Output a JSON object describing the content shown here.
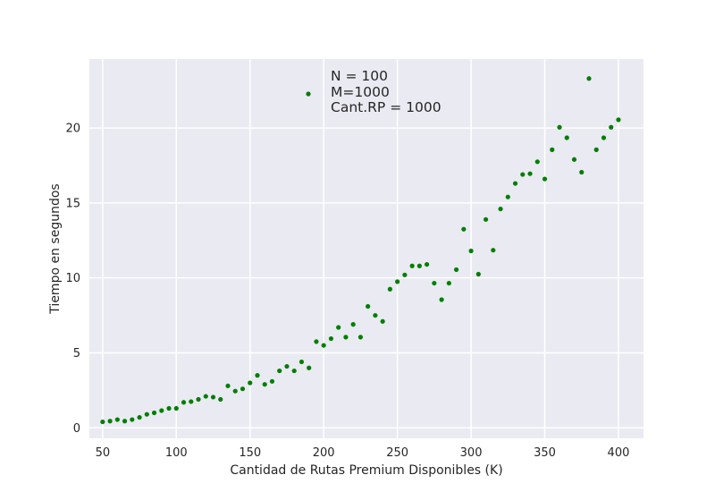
{
  "chart_data": {
    "type": "scatter",
    "xlabel": "Cantidad de Rutas Premium Disponibles (K)",
    "ylabel": "Tiempo en segundos",
    "xlim": [
      41,
      417
    ],
    "ylim": [
      -0.7,
      24.6
    ],
    "xticks": [
      50,
      100,
      150,
      200,
      250,
      300,
      350,
      400
    ],
    "yticks": [
      0,
      5,
      10,
      15,
      20
    ],
    "grid": true,
    "legend_position": "top-center",
    "legend_lines": [
      "N = 100",
      "M=1000",
      "Cant.RP = 1000"
    ],
    "series": [
      {
        "color": "#007f00",
        "points": [
          [
            50,
            0.4
          ],
          [
            55,
            0.45
          ],
          [
            60,
            0.55
          ],
          [
            65,
            0.45
          ],
          [
            70,
            0.55
          ],
          [
            75,
            0.7
          ],
          [
            80,
            0.9
          ],
          [
            85,
            1.0
          ],
          [
            90,
            1.15
          ],
          [
            95,
            1.3
          ],
          [
            100,
            1.3
          ],
          [
            105,
            1.7
          ],
          [
            110,
            1.75
          ],
          [
            115,
            1.9
          ],
          [
            120,
            2.1
          ],
          [
            125,
            2.05
          ],
          [
            130,
            1.9
          ],
          [
            135,
            2.8
          ],
          [
            140,
            2.45
          ],
          [
            145,
            2.6
          ],
          [
            150,
            3.0
          ],
          [
            155,
            3.5
          ],
          [
            160,
            2.9
          ],
          [
            165,
            3.1
          ],
          [
            170,
            3.8
          ],
          [
            175,
            4.1
          ],
          [
            180,
            3.8
          ],
          [
            185,
            4.4
          ],
          [
            190,
            4.0
          ],
          [
            195,
            5.75
          ],
          [
            200,
            5.5
          ],
          [
            205,
            5.95
          ],
          [
            210,
            6.7
          ],
          [
            215,
            6.05
          ],
          [
            220,
            6.9
          ],
          [
            225,
            6.05
          ],
          [
            230,
            8.1
          ],
          [
            235,
            7.5
          ],
          [
            240,
            7.1
          ],
          [
            245,
            9.25
          ],
          [
            250,
            9.75
          ],
          [
            255,
            10.2
          ],
          [
            260,
            10.8
          ],
          [
            265,
            10.8
          ],
          [
            270,
            10.9
          ],
          [
            275,
            9.65
          ],
          [
            280,
            8.55
          ],
          [
            285,
            9.65
          ],
          [
            290,
            10.55
          ],
          [
            295,
            13.25
          ],
          [
            300,
            11.8
          ],
          [
            305,
            10.25
          ],
          [
            310,
            13.9
          ],
          [
            315,
            11.85
          ],
          [
            320,
            14.6
          ],
          [
            325,
            15.4
          ],
          [
            330,
            16.3
          ],
          [
            335,
            16.9
          ],
          [
            340,
            16.95
          ],
          [
            345,
            17.75
          ],
          [
            350,
            16.6
          ],
          [
            355,
            18.55
          ],
          [
            360,
            20.05
          ],
          [
            365,
            19.35
          ],
          [
            370,
            17.9
          ],
          [
            375,
            17.05
          ],
          [
            380,
            23.3
          ],
          [
            385,
            18.55
          ],
          [
            390,
            19.35
          ],
          [
            395,
            20.05
          ],
          [
            400,
            20.55
          ]
        ]
      }
    ]
  }
}
